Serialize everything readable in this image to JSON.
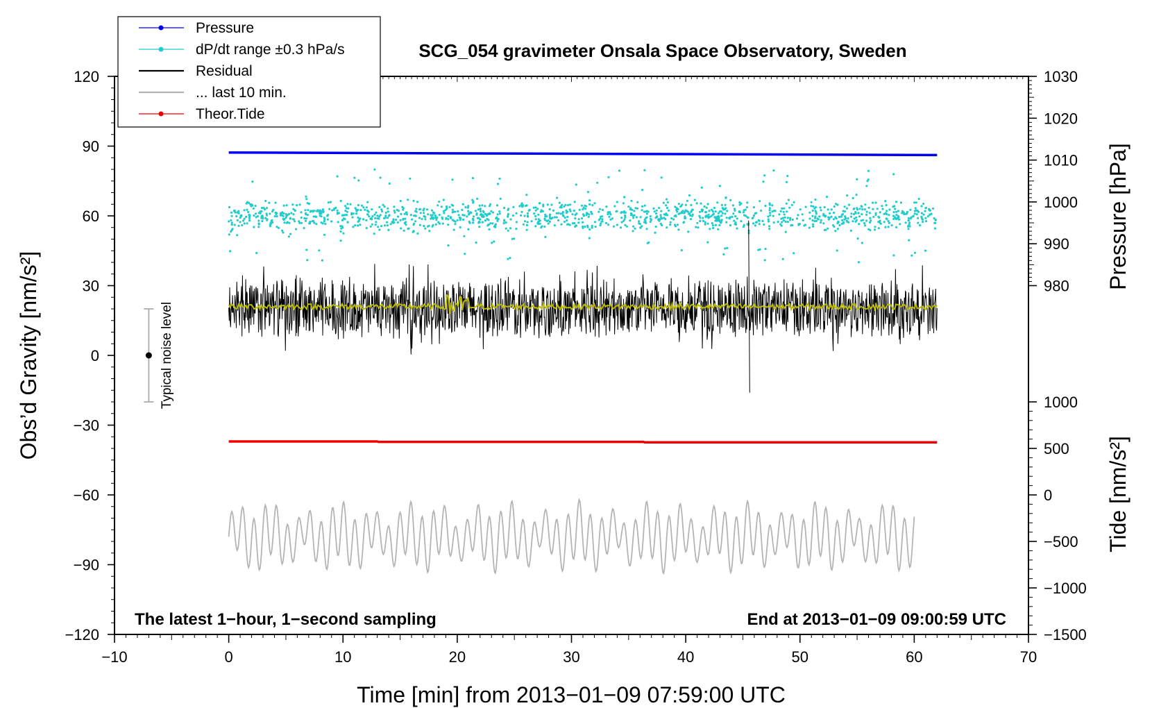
{
  "chart_data": {
    "type": "line",
    "title": "SCG_054 gravimeter Onsala Space Observatory, Sweden",
    "xlabel": "Time [min] from 2013−01−09 07:59:00 UTC",
    "ylabel_left": "Obs’d Gravity [nm/s²]",
    "ylabel_right_pressure": "Pressure [hPa]",
    "ylabel_right_tide": "Tide [nm/s²]",
    "xlim": [
      -10,
      70
    ],
    "ylim_left": [
      -120,
      120
    ],
    "pressure_axis_range": [
      980,
      1030
    ],
    "tide_axis_range": [
      -1500,
      1000
    ],
    "x_ticks": [
      -10,
      0,
      10,
      20,
      30,
      40,
      50,
      60,
      70
    ],
    "x_tick_labels": [
      "−10",
      "0",
      "10",
      "20",
      "30",
      "40",
      "50",
      "60",
      "70"
    ],
    "y_left_ticks": [
      120,
      90,
      60,
      30,
      0,
      -30,
      -60,
      -90,
      -120
    ],
    "y_left_tick_labels": [
      "120",
      "90",
      "60",
      "30",
      "0",
      "−30",
      "−60",
      "−90",
      "−120"
    ],
    "pressure_ticks": [
      1030,
      1020,
      1010,
      1000,
      990,
      980
    ],
    "pressure_tick_labels": [
      "1030",
      "1020",
      "1010",
      "1000",
      "990",
      "980"
    ],
    "tide_ticks": [
      1000,
      500,
      0,
      -500,
      -1000,
      -1500
    ],
    "tide_tick_labels": [
      "1000",
      "500",
      "0",
      "−500",
      "−1000",
      "−1500"
    ],
    "legend": [
      {
        "label": "Pressure",
        "color": "#0000ee",
        "marker": true
      },
      {
        "label": "dP/dt range ±0.3 hPa/s",
        "color": "#22cccc",
        "marker": true
      },
      {
        "label": "Residual",
        "color": "#000000",
        "marker": false
      },
      {
        "label": "... last 10 min.",
        "color": "#b4b4b4",
        "marker": false
      },
      {
        "label": "Theor.Tide",
        "color": "#ee0000",
        "marker": true
      }
    ],
    "legend_position": "top-left, outside frame",
    "annotation_left": "The latest 1−hour, 1−second sampling",
    "annotation_right": "End at 2013−01−09 09:00:59 UTC",
    "noise_label": "Typical noise level",
    "noise_bar": {
      "x": -7,
      "center": 0,
      "low": -20,
      "high": 20
    },
    "series": [
      {
        "name": "Pressure",
        "axis": "pressure",
        "color": "#0000ee",
        "x_start": 0,
        "x_end": 62,
        "y_start": 1011.8,
        "y_end": 1011.2
      },
      {
        "name": "dP/dt range ±0.3 hPa/s",
        "axis": "left",
        "color": "#22cccc",
        "x_start": 0,
        "x_end": 62,
        "center": 60,
        "spread": 9
      },
      {
        "name": "Residual",
        "axis": "left",
        "color": "#000000",
        "x_start": 0,
        "x_end": 62,
        "center": 20,
        "min": -16,
        "max": 58
      },
      {
        "name": "Residual (smoothed)",
        "axis": "left",
        "color": "#bbbb00",
        "x_start": 0,
        "x_end": 62,
        "center": 21
      },
      {
        "name": "Theor.Tide",
        "axis": "tide",
        "color": "#ee0000",
        "x": [
          0,
          13,
          13.1,
          36.3,
          36.4,
          62
        ],
        "y": [
          575,
          575,
          570,
          570,
          565,
          565
        ]
      },
      {
        "name": "... last 10 min.",
        "axis": "left",
        "color": "#b4b4b4",
        "x_start": 0,
        "x_end": 60,
        "center": -78,
        "min": -97,
        "max": -53
      }
    ],
    "colors": {
      "pressure": "#0000ee",
      "dpdt": "#22cccc",
      "residual": "#000000",
      "smoothed": "#bbbb00",
      "tide": "#ee0000",
      "last10": "#b4b4b4",
      "noise_bar": "#b4b4b4"
    }
  }
}
